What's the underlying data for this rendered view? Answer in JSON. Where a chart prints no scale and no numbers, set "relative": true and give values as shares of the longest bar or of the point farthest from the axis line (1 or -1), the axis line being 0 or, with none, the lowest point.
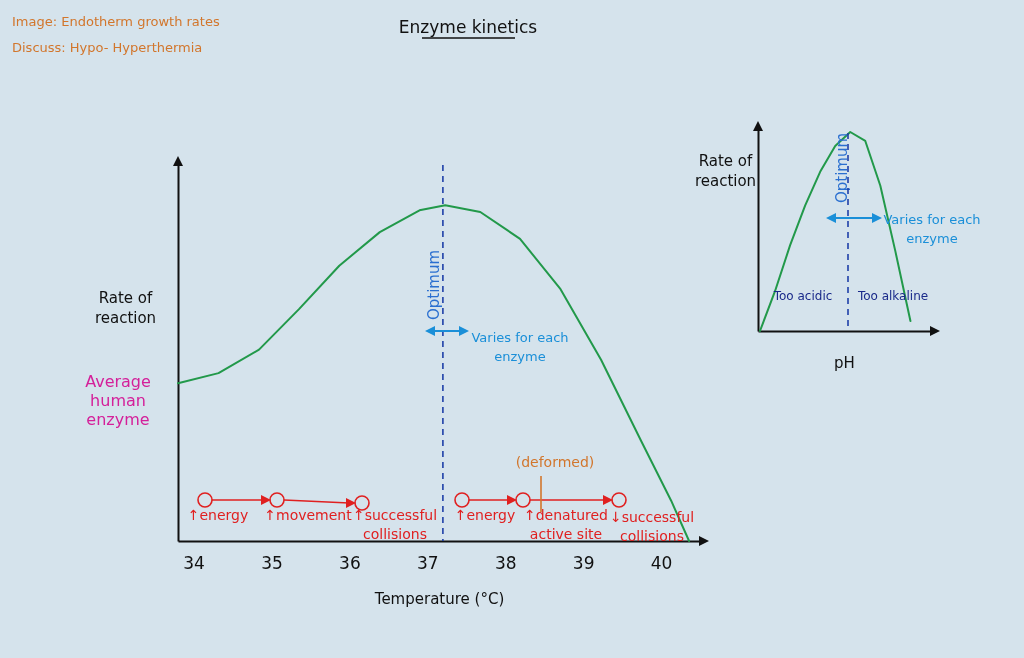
{
  "chart_data": [
    {
      "type": "line",
      "title": "Enzyme kinetics",
      "xlabel": "Temperature (°C)",
      "ylabel": "Rate of reaction",
      "relative": true,
      "tick_labels": "x",
      "x": [
        33.8,
        34.32,
        34.84,
        35.35,
        35.87,
        36.39,
        36.9,
        37.23,
        37.68,
        38.19,
        38.71,
        39.23,
        39.74,
        40.13,
        40.36
      ],
      "series": [
        {
          "color": "#22994a",
          "values": [
            0.47,
            0.5,
            0.57,
            0.69,
            0.82,
            0.92,
            0.985,
            1,
            0.98,
            0.9,
            0.75,
            0.54,
            0.3,
            0.12,
            0
          ]
        }
      ],
      "xlim": [
        33.8,
        40.5
      ],
      "xticks": [
        34,
        35,
        36,
        37,
        38,
        39,
        40
      ],
      "ref_lines": [
        {
          "axis": "x",
          "value": 37.2,
          "label": "Optimum",
          "color": "#1f3fa8",
          "line_style": "dashed"
        }
      ],
      "annotations": [
        "Image: Endotherm growth rates",
        "Discuss: Hypo- Hyperthermia",
        "Average human enzyme",
        "Varies for each enzyme",
        "↑energy",
        "↑movement",
        "↑successful collisions",
        "↑energy",
        "↑denatured active site",
        "(deformed)",
        "↓successful collisions"
      ]
    },
    {
      "type": "line",
      "xlabel": "pH",
      "ylabel": "Rate of reaction",
      "relative": true,
      "tick_labels": false,
      "categories": [
        null,
        null,
        null,
        null,
        null,
        null,
        null,
        null,
        null,
        null,
        null
      ],
      "series": [
        {
          "color": "#22994a",
          "values": [
            0,
            0.2,
            0.43,
            0.63,
            0.8,
            0.93,
            1,
            0.955,
            0.73,
            0.4,
            0.05
          ]
        }
      ],
      "annotations": [
        "Optimum",
        "Varies for each enzyme",
        "Too acidic",
        "Too alkaline"
      ]
    }
  ]
}
